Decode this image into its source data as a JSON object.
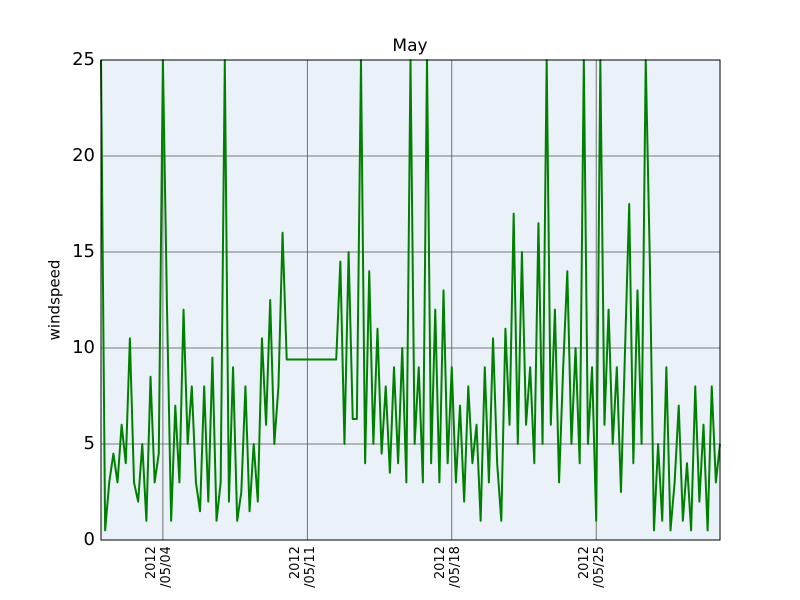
{
  "chart_data": {
    "type": "line",
    "title": "May",
    "ylabel": "windspeed",
    "x": [
      1.0,
      1.2,
      1.4,
      1.6,
      1.8,
      2.0,
      2.2,
      2.4,
      2.6,
      2.8,
      3.0,
      3.2,
      3.4,
      3.6,
      3.8,
      4.0,
      4.2,
      4.4,
      4.6,
      4.8,
      5.0,
      5.2,
      5.4,
      5.6,
      5.8,
      6.0,
      6.2,
      6.4,
      6.6,
      6.8,
      7.0,
      7.2,
      7.4,
      7.6,
      7.8,
      8.0,
      8.2,
      8.4,
      8.6,
      8.8,
      9.0,
      9.2,
      9.4,
      9.6,
      9.8,
      10.0,
      10.2,
      10.4,
      10.6,
      10.8,
      11.0,
      11.2,
      11.4,
      11.6,
      11.8,
      12.0,
      12.2,
      12.4,
      12.6,
      12.8,
      13.0,
      13.2,
      13.4,
      13.6,
      13.8,
      14.0,
      14.2,
      14.4,
      14.6,
      14.8,
      15.0,
      15.2,
      15.4,
      15.6,
      15.8,
      16.0,
      16.2,
      16.4,
      16.6,
      16.8,
      17.0,
      17.2,
      17.4,
      17.6,
      17.8,
      18.0,
      18.2,
      18.4,
      18.6,
      18.8,
      19.0,
      19.2,
      19.4,
      19.6,
      19.8,
      20.0,
      20.2,
      20.4,
      20.6,
      20.8,
      21.0,
      21.2,
      21.4,
      21.6,
      21.8,
      22.0,
      22.2,
      22.4,
      22.6,
      22.8,
      23.0,
      23.2,
      23.4,
      23.6,
      23.8,
      24.0,
      24.2,
      24.4,
      24.6,
      24.8,
      25.0,
      25.2,
      25.4,
      25.6,
      25.8,
      26.0,
      26.2,
      26.4,
      26.6,
      26.8,
      27.0,
      27.2,
      27.4,
      27.6,
      27.8,
      28.0,
      28.2,
      28.4,
      28.6,
      28.8,
      29.0,
      29.2,
      29.4,
      29.6,
      29.8,
      30.0,
      30.2,
      30.4,
      30.6,
      30.8,
      31.0
    ],
    "series": [
      {
        "color": "#008000",
        "values": [
          25,
          0.5,
          3,
          4.5,
          3,
          6,
          4,
          10.5,
          3,
          2,
          5,
          1,
          8.5,
          3,
          4.5,
          25,
          12,
          1,
          7,
          3,
          12,
          5,
          8,
          3,
          1.5,
          8,
          2,
          9.5,
          1,
          3,
          25,
          2,
          9,
          1,
          2.5,
          8,
          1.5,
          5,
          2,
          10.5,
          6,
          12.5,
          5,
          8,
          16,
          9.4,
          9.4,
          9.4,
          9.4,
          9.4,
          9.4,
          9.4,
          9.4,
          9.4,
          9.4,
          9.4,
          9.4,
          9.4,
          14.5,
          5,
          15,
          6.3,
          6.3,
          25,
          4,
          14,
          5,
          11,
          4.5,
          8,
          3.5,
          9,
          4,
          10,
          3,
          25,
          5,
          9,
          3,
          25,
          4,
          12,
          3,
          13,
          4,
          9,
          3,
          7,
          2,
          8,
          4,
          6,
          1,
          9,
          3,
          10.5,
          4,
          1,
          11,
          6,
          17,
          5,
          15,
          6,
          9,
          4,
          16.5,
          5,
          25,
          6,
          12,
          3,
          9,
          14,
          5,
          10,
          4,
          25,
          5,
          9,
          1,
          25,
          6,
          12,
          5,
          9,
          2.5,
          10,
          17.5,
          4,
          13,
          5,
          25,
          14.5,
          0.5,
          5,
          1,
          9,
          0.5,
          3,
          7,
          1,
          4,
          0.5,
          8,
          2,
          6,
          0.5,
          8,
          3,
          5
        ]
      }
    ],
    "xlim": [
      1,
      31
    ],
    "xticks": [
      {
        "value": 4,
        "label": "2012\n/05/04"
      },
      {
        "value": 11,
        "label": "2012\n/05/11"
      },
      {
        "value": 18,
        "label": "2012\n/05/18"
      },
      {
        "value": 25,
        "label": "2012\n/05/25"
      }
    ],
    "ylim": [
      0,
      25
    ],
    "yticks": [
      0,
      5,
      10,
      15,
      20,
      25
    ],
    "grid": true
  }
}
